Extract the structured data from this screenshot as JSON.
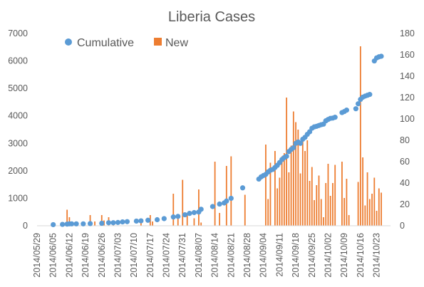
{
  "colors": {
    "cumulative": "#5B9BD5",
    "new": "#ED7D31",
    "axis": "#D9D9D9",
    "text": "#595959"
  },
  "chart_data": {
    "type": "bar",
    "title": "Liberia Cases",
    "legend": {
      "placement": "top-left",
      "items": [
        {
          "name": "Cumulative",
          "marker": "circle",
          "color": "#5B9BD5"
        },
        {
          "name": "New",
          "marker": "square",
          "color": "#ED7D31"
        }
      ]
    },
    "grid": false,
    "x_axis": {
      "type": "date",
      "range": [
        "2014/05/29",
        "2014/10/29"
      ],
      "tick_labels": [
        "2014/05/29",
        "2014/06/05",
        "2014/06/12",
        "2014/06/19",
        "2014/06/26",
        "2014/07/03",
        "2014/07/10",
        "2014/07/17",
        "2014/07/24",
        "2014/07/31",
        "2014/08/07",
        "2014/08/14",
        "2014/08/21",
        "2014/08/28",
        "2014/09/04",
        "2014/09/11",
        "2014/09/18",
        "2014/09/25",
        "2014/10/02",
        "2014/10/09",
        "2014/10/16",
        "2014/10/23"
      ]
    },
    "y_axis_left": {
      "range": [
        0,
        7000
      ],
      "tick_labels": [
        "0",
        "1000",
        "2000",
        "3000",
        "4000",
        "5000",
        "6000",
        "7000"
      ]
    },
    "y_axis_right": {
      "range": [
        0,
        180
      ],
      "tick_labels": [
        "0",
        "20",
        "40",
        "60",
        "80",
        "100",
        "120",
        "140",
        "160",
        "180"
      ]
    },
    "series": [
      {
        "name": "Cumulative",
        "type": "scatter",
        "axis": "left",
        "x": [
          "2014/06/05",
          "2014/06/09",
          "2014/06/11",
          "2014/06/12",
          "2014/06/13",
          "2014/06/15",
          "2014/06/18",
          "2014/06/21",
          "2014/06/26",
          "2014/06/29",
          "2014/07/01",
          "2014/07/03",
          "2014/07/05",
          "2014/07/07",
          "2014/07/11",
          "2014/07/13",
          "2014/07/16",
          "2014/07/20",
          "2014/07/23",
          "2014/07/27",
          "2014/07/29",
          "2014/08/01",
          "2014/08/03",
          "2014/08/05",
          "2014/08/07",
          "2014/08/08",
          "2014/08/13",
          "2014/08/16",
          "2014/08/18",
          "2014/08/19",
          "2014/08/21",
          "2014/08/26",
          "2014/09/02",
          "2014/09/03",
          "2014/09/04",
          "2014/09/05",
          "2014/09/06",
          "2014/09/07",
          "2014/09/08",
          "2014/09/09",
          "2014/09/10",
          "2014/09/11",
          "2014/09/12",
          "2014/09/13",
          "2014/09/14",
          "2014/09/15",
          "2014/09/16",
          "2014/09/17",
          "2014/09/18",
          "2014/09/19",
          "2014/09/20",
          "2014/09/21",
          "2014/09/22",
          "2014/09/23",
          "2014/09/24",
          "2014/09/25",
          "2014/09/26",
          "2014/09/27",
          "2014/09/28",
          "2014/09/29",
          "2014/09/30",
          "2014/10/01",
          "2014/10/02",
          "2014/10/03",
          "2014/10/04",
          "2014/10/05",
          "2014/10/08",
          "2014/10/09",
          "2014/10/10",
          "2014/10/14",
          "2014/10/15",
          "2014/10/16",
          "2014/10/17",
          "2014/10/18",
          "2014/10/19",
          "2014/10/20",
          "2014/10/22",
          "2014/10/23",
          "2014/10/24",
          "2014/10/25"
        ],
        "values": [
          40,
          50,
          60,
          70,
          70,
          70,
          70,
          80,
          90,
          110,
          110,
          120,
          140,
          150,
          170,
          180,
          200,
          220,
          260,
          320,
          340,
          400,
          450,
          480,
          500,
          600,
          700,
          790,
          830,
          900,
          1000,
          1380,
          1700,
          1780,
          1830,
          1870,
          1960,
          2020,
          2050,
          2120,
          2200,
          2300,
          2410,
          2480,
          2530,
          2700,
          2780,
          2840,
          3000,
          3050,
          3000,
          3150,
          3220,
          3330,
          3420,
          3550,
          3600,
          3620,
          3650,
          3680,
          3700,
          3820,
          3870,
          3910,
          3920,
          3950,
          4120,
          4160,
          4210,
          4260,
          4440,
          4600,
          4680,
          4720,
          4750,
          4780,
          6000,
          6110,
          6150,
          6170
        ]
      },
      {
        "name": "New",
        "type": "bar",
        "axis": "right",
        "x": [
          "2014/06/11",
          "2014/06/12",
          "2014/06/13",
          "2014/06/21",
          "2014/06/23",
          "2014/06/26",
          "2014/06/27",
          "2014/06/29",
          "2014/07/01",
          "2014/07/13",
          "2014/07/17",
          "2014/07/18",
          "2014/07/27",
          "2014/07/29",
          "2014/07/31",
          "2014/08/02",
          "2014/08/05",
          "2014/08/07",
          "2014/08/08",
          "2014/08/14",
          "2014/08/16",
          "2014/08/19",
          "2014/08/21",
          "2014/08/27",
          "2014/09/05",
          "2014/09/06",
          "2014/09/07",
          "2014/09/09",
          "2014/09/10",
          "2014/09/11",
          "2014/09/12",
          "2014/09/13",
          "2014/09/14",
          "2014/09/15",
          "2014/09/16",
          "2014/09/17",
          "2014/09/18",
          "2014/09/19",
          "2014/09/20",
          "2014/09/21",
          "2014/09/22",
          "2014/09/23",
          "2014/09/24",
          "2014/09/25",
          "2014/09/26",
          "2014/09/27",
          "2014/09/28",
          "2014/09/29",
          "2014/09/30",
          "2014/10/01",
          "2014/10/02",
          "2014/10/03",
          "2014/10/04",
          "2014/10/05",
          "2014/10/08",
          "2014/10/09",
          "2014/10/10",
          "2014/10/11",
          "2014/10/15",
          "2014/10/16",
          "2014/10/17",
          "2014/10/18",
          "2014/10/19",
          "2014/10/20",
          "2014/10/21",
          "2014/10/22",
          "2014/10/23",
          "2014/10/24",
          "2014/10/25"
        ],
        "values": [
          15,
          8,
          3,
          10,
          4,
          10,
          5,
          8,
          3,
          3,
          10,
          4,
          30,
          7,
          43,
          12,
          7,
          34,
          3,
          60,
          12,
          56,
          65,
          29,
          76,
          25,
          59,
          70,
          35,
          45,
          65,
          68,
          120,
          50,
          75,
          107,
          97,
          90,
          49,
          80,
          70,
          80,
          42,
          55,
          24,
          38,
          47,
          25,
          8,
          40,
          58,
          28,
          40,
          57,
          60,
          26,
          44,
          10,
          41,
          168,
          64,
          19,
          50,
          25,
          30,
          45,
          14,
          35,
          31
        ]
      }
    ]
  }
}
